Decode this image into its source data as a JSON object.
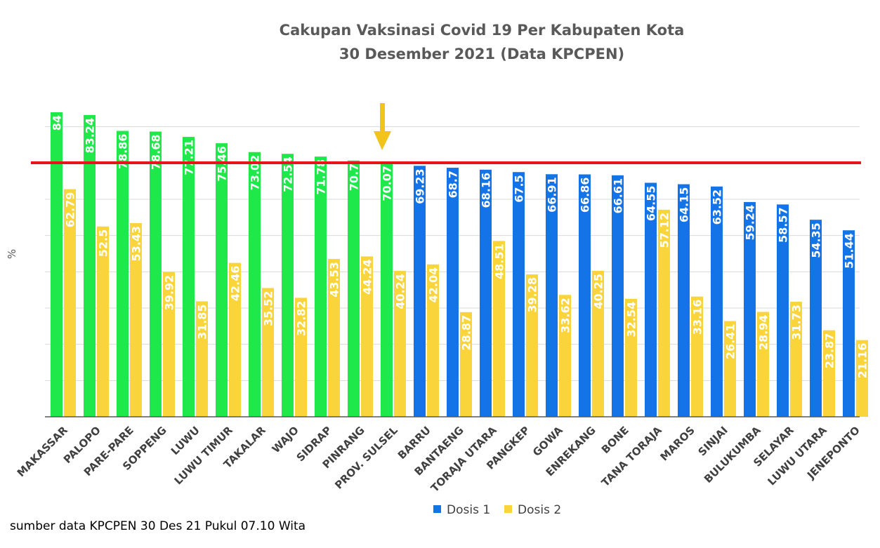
{
  "chart_data": {
    "type": "bar",
    "title": "Cakupan Vaksinasi Covid 19 Per Kabupaten Kota",
    "subtitle": "30 Desember 2021 (Data KPCPEN)",
    "xlabel": "",
    "ylabel": "%",
    "ylim": [
      0,
      85
    ],
    "grid": true,
    "legend": "bottom",
    "reference_line": 70.07,
    "categories": [
      "MAKASSAR",
      "PALOPO",
      "PARE-PARE",
      "SOPPENG",
      "LUWU",
      "LUWU TIMUR",
      "TAKALAR",
      "WAJO",
      "SIDRAP",
      "PINRANG",
      "PROV. SULSEL",
      "BARRU",
      "BANTAENG",
      "TORAJA UTARA",
      "PANGKEP",
      "GOWA",
      "ENREKANG",
      "BONE",
      "TANA TORAJA",
      "MAROS",
      "SINJAI",
      "BULUKUMBA",
      "SELAYAR",
      "LUWU UTARA",
      "JENEPONTO"
    ],
    "series": [
      {
        "name": "Dosis 1",
        "values": [
          84,
          83.24,
          78.86,
          78.68,
          77.21,
          75.46,
          73.02,
          72.54,
          71.78,
          70.7,
          70.07,
          69.23,
          68.7,
          68.16,
          67.5,
          66.91,
          66.86,
          66.61,
          64.55,
          64.15,
          63.52,
          59.24,
          58.57,
          54.35,
          51.44
        ],
        "labels": [
          "84",
          "83.24",
          "78.86",
          "78.68",
          "77.21",
          "75.46",
          "73.02",
          "72.54",
          "71.78",
          "70.7",
          "70.07",
          "69.23",
          "68.7",
          "68.16",
          "67.5",
          "66.91",
          "66.86",
          "66.61",
          "64.55",
          "64.15",
          "63.52",
          "59.24",
          "58.57",
          "54.35",
          "51.44"
        ]
      },
      {
        "name": "Dosis 2",
        "values": [
          62.79,
          52.5,
          53.43,
          39.92,
          31.85,
          42.46,
          35.52,
          32.82,
          43.53,
          44.24,
          40.24,
          42.04,
          28.87,
          48.51,
          39.28,
          33.62,
          40.25,
          32.54,
          57.12,
          33.16,
          26.41,
          28.94,
          31.73,
          23.87,
          21.16
        ],
        "labels": [
          "62.79",
          "52.5",
          "53.43",
          "39.92",
          "31.85",
          "42.46",
          "35.52",
          "32.82",
          "43.53",
          "44.24",
          "40.24",
          "42.04",
          "28.87",
          "48.51",
          "39.28",
          "33.62",
          "40.25",
          "32.54",
          "57.12",
          "33.16",
          "26.41",
          "28.94",
          "31.73",
          "23.87",
          "21.16"
        ]
      }
    ]
  },
  "colors": {
    "dosis1_green": "#1FE84A",
    "dosis1_blue": "#1473E6",
    "dosis2": "#F9D43A",
    "reference_line": "#E8141B",
    "arrow": "#F2C31B",
    "grid": "#D9D9D9",
    "axis": "#595959"
  },
  "source_note": "sumber data KPCPEN 30 Des 21 Pukul 07.10 Wita"
}
